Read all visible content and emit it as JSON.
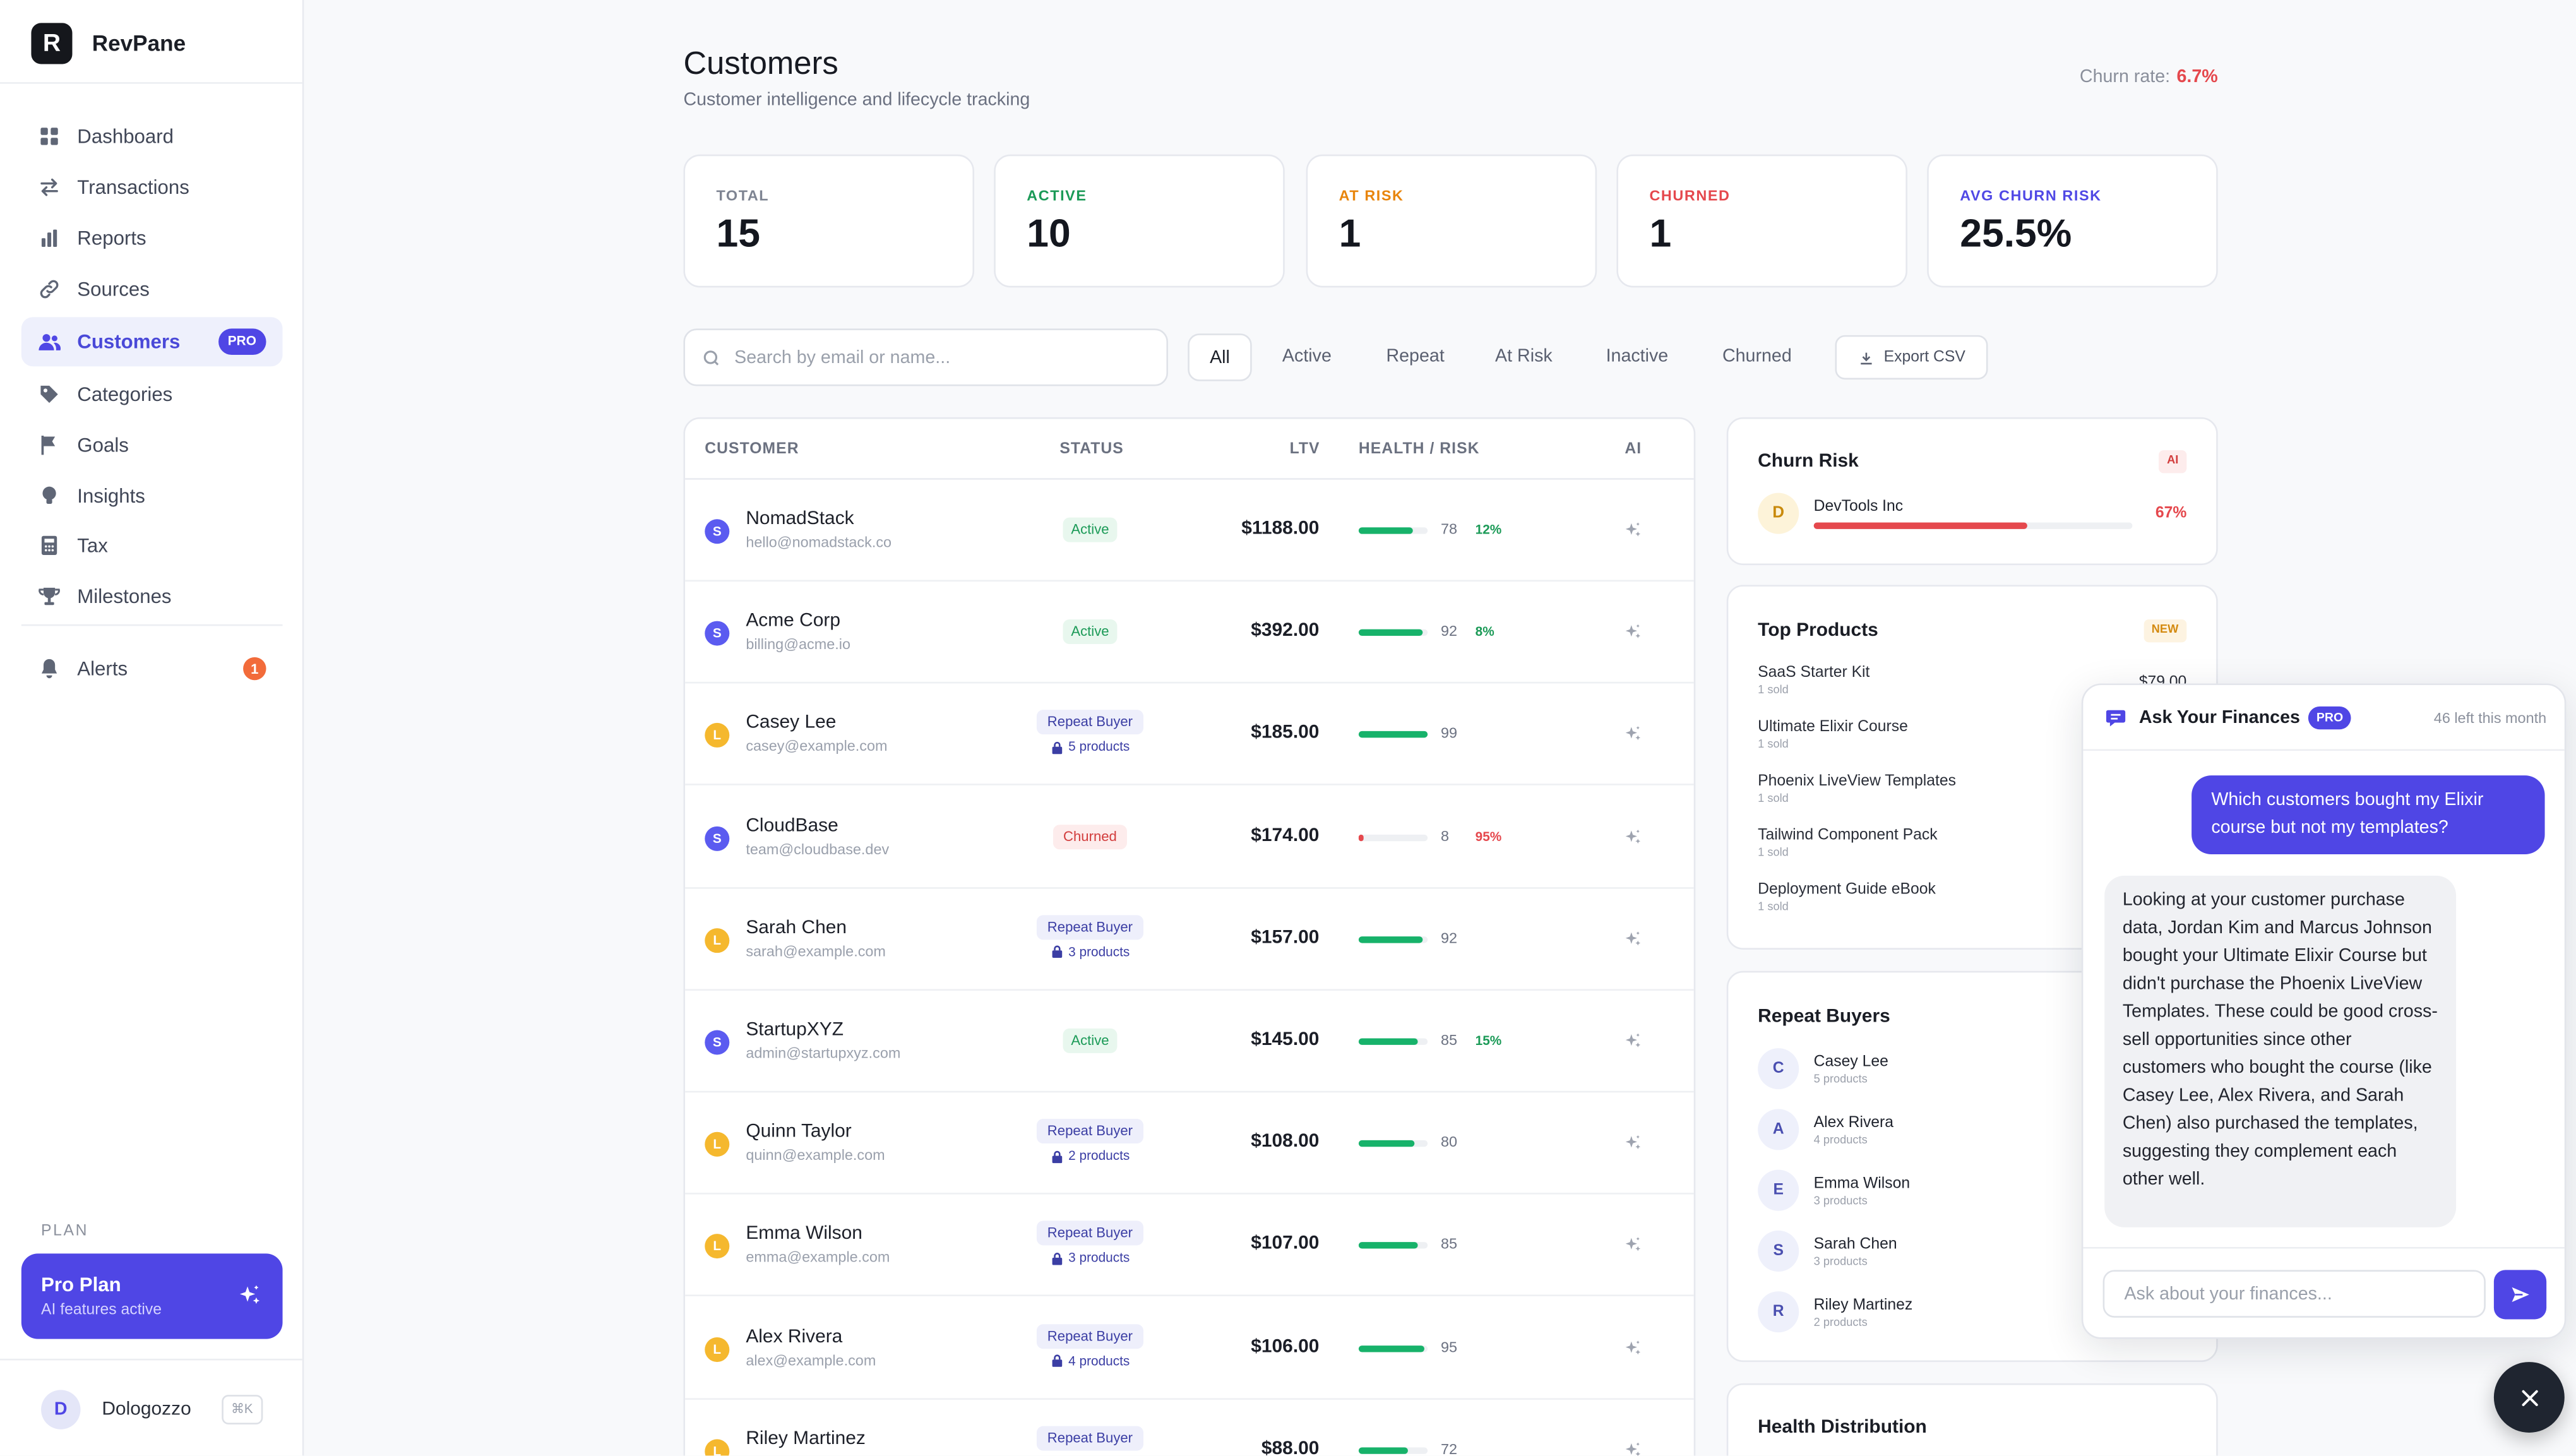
{
  "app": {
    "name": "RevPane",
    "logo_letter": "R"
  },
  "sidebar": {
    "items": [
      {
        "label": "Dashboard",
        "icon": "grid-icon"
      },
      {
        "label": "Transactions",
        "icon": "swap-icon"
      },
      {
        "label": "Reports",
        "icon": "bar-chart-icon"
      },
      {
        "label": "Sources",
        "icon": "link-icon"
      },
      {
        "label": "Customers",
        "icon": "users-icon",
        "badge": "PRO",
        "active": true
      },
      {
        "label": "Categories",
        "icon": "tag-icon"
      },
      {
        "label": "Goals",
        "icon": "flag-icon"
      },
      {
        "label": "Insights",
        "icon": "lightbulb-icon"
      },
      {
        "label": "Tax",
        "icon": "calculator-icon"
      },
      {
        "label": "Milestones",
        "icon": "trophy-icon"
      }
    ],
    "alerts": {
      "label": "Alerts",
      "count": "1",
      "icon": "bell-icon"
    },
    "plan": {
      "section_label": "PLAN",
      "title": "Pro Plan",
      "subtitle": "AI features active"
    },
    "user": {
      "initial": "D",
      "name": "Dologozzo",
      "shortcut": "⌘K"
    }
  },
  "header": {
    "title": "Customers",
    "subtitle": "Customer intelligence and lifecycle tracking",
    "churn_label": "Churn rate:",
    "churn_value": "6.7%"
  },
  "stats": [
    {
      "label": "TOTAL",
      "value": "15",
      "color": "#7e8492"
    },
    {
      "label": "ACTIVE",
      "value": "10",
      "color": "#1b9a57"
    },
    {
      "label": "AT RISK",
      "value": "1",
      "color": "#e8850c"
    },
    {
      "label": "CHURNED",
      "value": "1",
      "color": "#e5484d"
    },
    {
      "label": "AVG CHURN RISK",
      "value": "25.5%",
      "color": "#5048e5"
    }
  ],
  "search": {
    "placeholder": "Search by email or name...",
    "value": ""
  },
  "filters": [
    "All",
    "Active",
    "Repeat",
    "At Risk",
    "Inactive",
    "Churned"
  ],
  "export_label": "Export CSV",
  "table": {
    "headers": {
      "customer": "CUSTOMER",
      "status": "STATUS",
      "ltv": "LTV",
      "health": "HEALTH / RISK",
      "ai": "AI"
    },
    "rows": [
      {
        "name": "NomadStack",
        "email": "hello@nomadstack.co",
        "avatar": "S",
        "source": "stripe",
        "status": "Active",
        "ltv": "$1188.00",
        "health": 78,
        "risk": "12%",
        "risk_color": "#1b9a57"
      },
      {
        "name": "Acme Corp",
        "email": "billing@acme.io",
        "avatar": "S",
        "source": "stripe",
        "status": "Active",
        "ltv": "$392.00",
        "health": 92,
        "risk": "8%",
        "risk_color": "#1b9a57"
      },
      {
        "name": "Casey Lee",
        "email": "casey@example.com",
        "avatar": "L",
        "source": "lemon",
        "status": "Repeat Buyer",
        "products": "5 products",
        "ltv": "$185.00",
        "health": 99,
        "risk": "",
        "risk_color": ""
      },
      {
        "name": "CloudBase",
        "email": "team@cloudbase.dev",
        "avatar": "S",
        "source": "stripe",
        "status": "Churned",
        "ltv": "$174.00",
        "health": 8,
        "risk": "95%",
        "risk_color": "#e5484d"
      },
      {
        "name": "Sarah Chen",
        "email": "sarah@example.com",
        "avatar": "L",
        "source": "lemon",
        "status": "Repeat Buyer",
        "products": "3 products",
        "ltv": "$157.00",
        "health": 92,
        "risk": "",
        "risk_color": ""
      },
      {
        "name": "StartupXYZ",
        "email": "admin@startupxyz.com",
        "avatar": "S",
        "source": "stripe",
        "status": "Active",
        "ltv": "$145.00",
        "health": 85,
        "risk": "15%",
        "risk_color": "#1b9a57"
      },
      {
        "name": "Quinn Taylor",
        "email": "quinn@example.com",
        "avatar": "L",
        "source": "lemon",
        "status": "Repeat Buyer",
        "products": "2 products",
        "ltv": "$108.00",
        "health": 80,
        "risk": "",
        "risk_color": ""
      },
      {
        "name": "Emma Wilson",
        "email": "emma@example.com",
        "avatar": "L",
        "source": "lemon",
        "status": "Repeat Buyer",
        "products": "3 products",
        "ltv": "$107.00",
        "health": 85,
        "risk": "",
        "risk_color": ""
      },
      {
        "name": "Alex Rivera",
        "email": "alex@example.com",
        "avatar": "L",
        "source": "lemon",
        "status": "Repeat Buyer",
        "products": "4 products",
        "ltv": "$106.00",
        "health": 95,
        "risk": "",
        "risk_color": ""
      },
      {
        "name": "Riley Martinez",
        "email": "",
        "avatar": "L",
        "source": "lemon",
        "status": "Repeat Buyer",
        "products": "",
        "ltv": "$88.00",
        "health": 72,
        "risk": "",
        "risk_color": ""
      }
    ]
  },
  "churn_panel": {
    "title": "Churn Risk",
    "tag": "AI",
    "customer": {
      "initial": "D",
      "name": "DevTools Inc",
      "risk": "67%",
      "risk_fraction": 0.67
    }
  },
  "top_products": {
    "title": "Top Products",
    "tag": "NEW",
    "first_price": "$79.00",
    "items": [
      {
        "name": "SaaS Starter Kit",
        "sold": "1 sold"
      },
      {
        "name": "Ultimate Elixir Course",
        "sold": "1 sold"
      },
      {
        "name": "Phoenix LiveView Templates",
        "sold": "1 sold"
      },
      {
        "name": "Tailwind Component Pack",
        "sold": "1 sold"
      },
      {
        "name": "Deployment Guide eBook",
        "sold": "1 sold"
      }
    ]
  },
  "repeat_buyers": {
    "title": "Repeat Buyers",
    "items": [
      {
        "initial": "C",
        "name": "Casey Lee",
        "count": "5 products"
      },
      {
        "initial": "A",
        "name": "Alex Rivera",
        "count": "4 products"
      },
      {
        "initial": "E",
        "name": "Emma Wilson",
        "count": "3 products"
      },
      {
        "initial": "S",
        "name": "Sarah Chen",
        "count": "3 products"
      },
      {
        "initial": "R",
        "name": "Riley Martinez",
        "count": "2 products"
      }
    ]
  },
  "health_panel": {
    "title": "Health Distribution"
  },
  "chat": {
    "title": "Ask Your Finances",
    "badge": "PRO",
    "remaining": "46 left this month",
    "user_message": "Which customers bought my Elixir course but not my templates?",
    "ai_message": "Looking at your customer purchase data, Jordan Kim and Marcus Johnson bought your Ultimate Elixir Course but didn't purchase the Phoenix LiveView Templates. These could be good cross-sell opportunities since other customers who bought the course (like Casey Lee, Alex Rivera, and Sarah Chen) also purchased the templates, suggesting they complement each other well.",
    "input_placeholder": "Ask about your finances..."
  },
  "colors": {
    "accent": "#4f46e5",
    "active_green": "#1b9a57",
    "danger": "#e5484d",
    "warning": "#e8850c",
    "stripe_avatar": "#5b5bf0",
    "lemon_avatar": "#f5b82e"
  }
}
